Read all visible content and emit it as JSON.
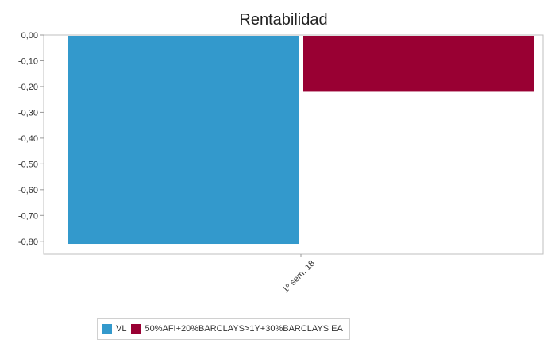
{
  "chart_data": {
    "type": "bar",
    "title": "Rentabilidad",
    "categories": [
      "1º sem. 18"
    ],
    "series": [
      {
        "name": "VL",
        "values": [
          -0.81
        ],
        "color": "#3399cc"
      },
      {
        "name": "50%AFI+20%BARCLAYS>1Y+30%BARCLAYS EA",
        "values": [
          -0.22
        ],
        "color": "#990033"
      }
    ],
    "ylim": [
      -0.85,
      0.0
    ],
    "yticks": [
      "0,00",
      "-0,10",
      "-0,20",
      "-0,30",
      "-0,40",
      "-0,50",
      "-0,60",
      "-0,70",
      "-0,80"
    ],
    "ytick_values": [
      0,
      -0.1,
      -0.2,
      -0.3,
      -0.4,
      -0.5,
      -0.6,
      -0.7,
      -0.8
    ],
    "xlabel": "",
    "ylabel": "",
    "grid": false,
    "legend_position": "bottom"
  }
}
